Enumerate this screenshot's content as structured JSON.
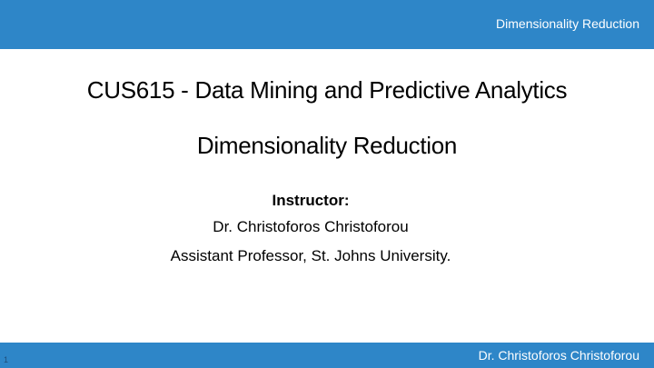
{
  "header": {
    "title": "Dimensionality Reduction"
  },
  "slide": {
    "title": "CUS615 - Data Mining and Predictive Analytics",
    "subtitle": "Dimensionality Reduction",
    "instructor_label": "Instructor:",
    "instructor_name": "Dr. Christoforos Christoforou",
    "instructor_affiliation": "Assistant Professor, St. Johns University."
  },
  "footer": {
    "author": "Dr. Christoforos Christoforou",
    "slide_number": "1"
  },
  "colors": {
    "accent": "#2e86c8",
    "background": "#ffffff",
    "text": "#000000"
  }
}
